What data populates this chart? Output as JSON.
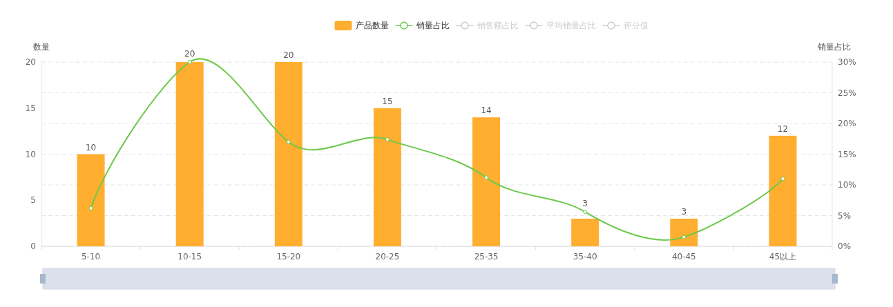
{
  "chart_data": {
    "type": "bar",
    "ylabel": "数量",
    "y2label": "销量占比",
    "categories": [
      "5-10",
      "10-15",
      "15-20",
      "20-25",
      "25-35",
      "35-40",
      "40-45",
      "45以上"
    ],
    "series": [
      {
        "name": "产品数量",
        "color": "#ffae2f",
        "values": [
          10,
          20,
          20,
          15,
          14,
          3,
          3,
          12
        ],
        "value_labels": [
          "10",
          "20",
          "20",
          "15",
          "14",
          "3",
          "3",
          "12"
        ]
      },
      {
        "name": "销量占比",
        "type": "line",
        "axis": "y2",
        "color": "#6dc94a",
        "marker": "circle",
        "values": [
          6.2,
          30,
          17,
          17.4,
          11.2,
          5.6,
          1.5,
          11
        ]
      },
      {
        "name": "销售额占比",
        "type": "line",
        "axis": "y2",
        "color": "#cccccc",
        "values": [
          null,
          null,
          null,
          null,
          null,
          null,
          null,
          null
        ]
      },
      {
        "name": "平均销量占比",
        "type": "line",
        "axis": "y2",
        "color": "#cccccc",
        "values": [
          null,
          null,
          null,
          null,
          null,
          null,
          null,
          null
        ]
      },
      {
        "name": "评分值",
        "type": "line",
        "axis": "y2",
        "color": "#cccccc",
        "values": [
          null,
          null,
          null,
          null,
          null,
          null,
          null,
          null
        ]
      }
    ],
    "ylim": [
      0,
      20
    ],
    "yticks": [
      0,
      5,
      10,
      15,
      20
    ],
    "y2lim": [
      0,
      30
    ],
    "y2ticks": [
      {
        "value": 0,
        "label": "0%"
      },
      {
        "value": 5,
        "label": "5%"
      },
      {
        "value": 10,
        "label": "10%"
      },
      {
        "value": 15,
        "label": "15%"
      },
      {
        "value": 20,
        "label": "20%"
      },
      {
        "value": 25,
        "label": "25%"
      },
      {
        "value": 30,
        "label": "30%"
      }
    ],
    "grid": "y2",
    "legend": "top"
  }
}
